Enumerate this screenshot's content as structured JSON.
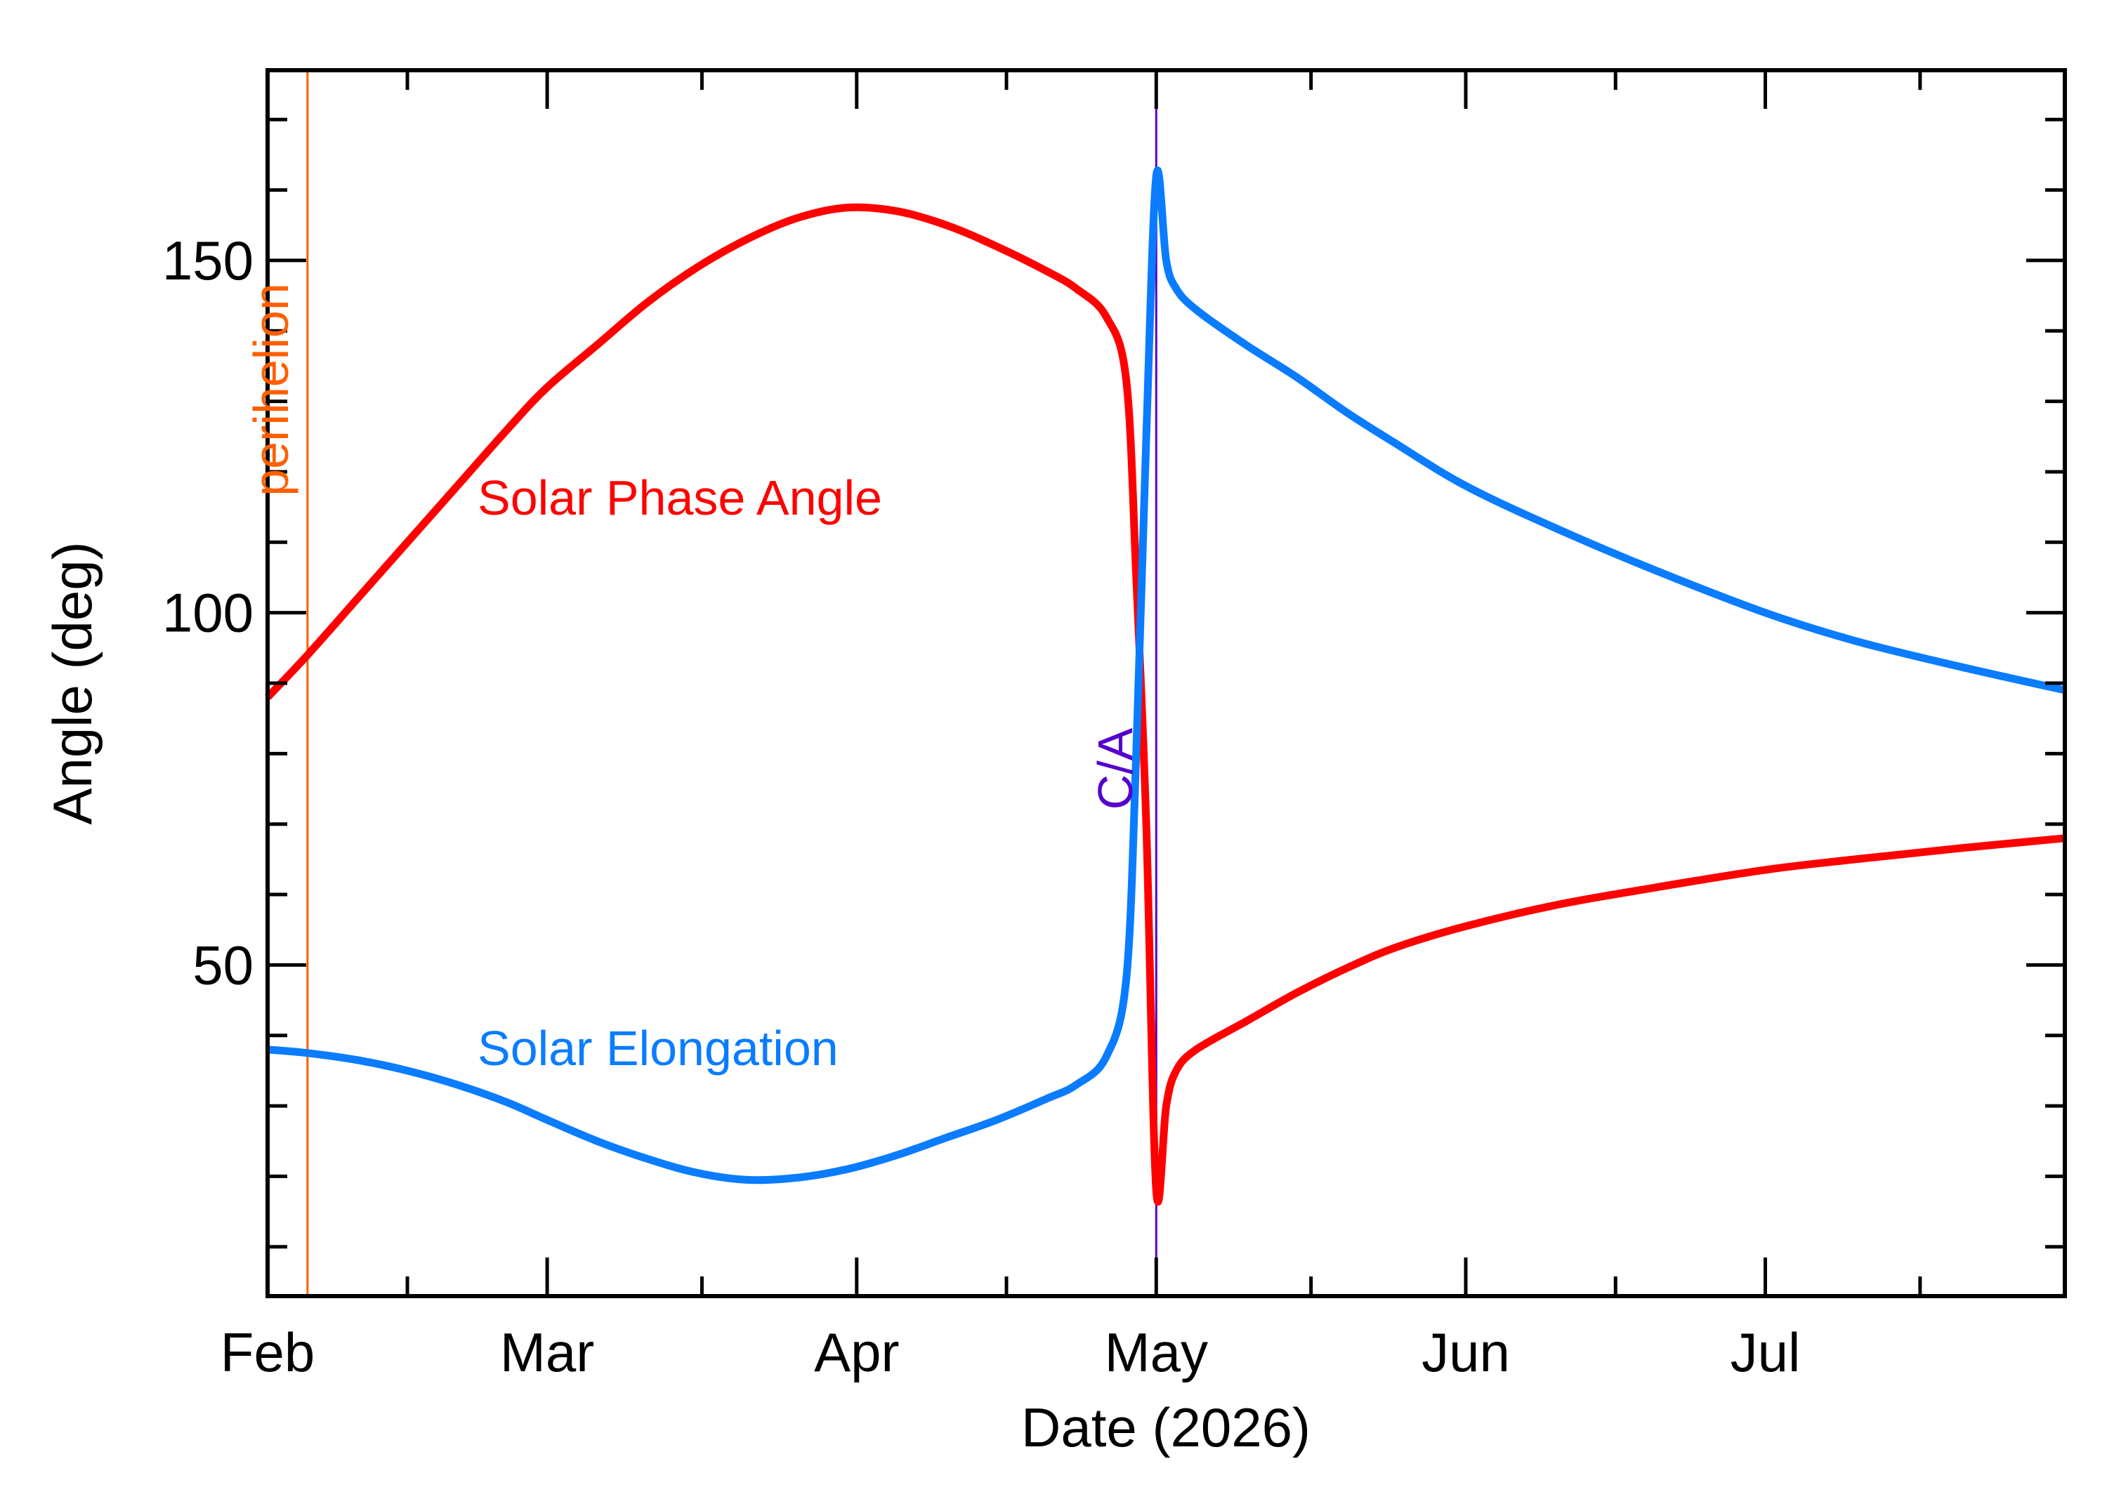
{
  "chart_data": {
    "type": "line",
    "title": "",
    "xlabel": "Date (2026)",
    "ylabel": "Angle (deg)",
    "x_axis": {
      "type": "date",
      "range": [
        "2026-02-01",
        "2026-07-31"
      ],
      "tick_dates": [
        "2026-02-01",
        "2026-03-01",
        "2026-04-01",
        "2026-05-01",
        "2026-06-01",
        "2026-07-01"
      ],
      "tick_labels": [
        "Feb",
        "Mar",
        "Apr",
        "May",
        "Jun",
        "Jul"
      ]
    },
    "y_axis": {
      "range": [
        3,
        177
      ],
      "major_ticks": [
        50,
        100,
        150
      ],
      "major_labels": [
        "50",
        "100",
        "150"
      ],
      "minor_ticks": [
        10,
        20,
        30,
        40,
        60,
        70,
        80,
        90,
        110,
        120,
        130,
        140,
        160,
        170
      ]
    },
    "grid": false,
    "series": [
      {
        "name": "Solar Phase Angle",
        "color": "#ff0000",
        "x": [
          "2026-02-01",
          "2026-02-05",
          "2026-02-10",
          "2026-02-15",
          "2026-02-20",
          "2026-02-25",
          "2026-03-01",
          "2026-03-06",
          "2026-03-11",
          "2026-03-16",
          "2026-03-21",
          "2026-03-26",
          "2026-03-31",
          "2026-04-05",
          "2026-04-10",
          "2026-04-15",
          "2026-04-20",
          "2026-04-23",
          "2026-04-26",
          "2026-04-28",
          "2026-04-29",
          "2026-04-30",
          "2026-05-01",
          "2026-05-02",
          "2026-05-03",
          "2026-05-05",
          "2026-05-10",
          "2026-05-15",
          "2026-05-20",
          "2026-05-25",
          "2026-06-01",
          "2026-06-10",
          "2026-06-20",
          "2026-07-01",
          "2026-07-10",
          "2026-07-20",
          "2026-07-31"
        ],
        "values": [
          88,
          94,
          102,
          110,
          118,
          126,
          132,
          138,
          144,
          149,
          153,
          156,
          157.5,
          157,
          155,
          152,
          148.5,
          146,
          142,
          133,
          105,
          70,
          18,
          30,
          35,
          38,
          42,
          46,
          49.5,
          52.5,
          55.5,
          58.5,
          61,
          63.5,
          65,
          66.5,
          68
        ]
      },
      {
        "name": "Solar Elongation",
        "color": "#0a7cff",
        "x": [
          "2026-02-01",
          "2026-02-05",
          "2026-02-10",
          "2026-02-15",
          "2026-02-20",
          "2026-02-25",
          "2026-03-01",
          "2026-03-06",
          "2026-03-11",
          "2026-03-16",
          "2026-03-21",
          "2026-03-26",
          "2026-03-31",
          "2026-04-05",
          "2026-04-10",
          "2026-04-15",
          "2026-04-20",
          "2026-04-23",
          "2026-04-26",
          "2026-04-28",
          "2026-04-29",
          "2026-04-30",
          "2026-05-01",
          "2026-05-02",
          "2026-05-03",
          "2026-05-05",
          "2026-05-10",
          "2026-05-15",
          "2026-05-20",
          "2026-05-25",
          "2026-06-01",
          "2026-06-10",
          "2026-06-20",
          "2026-07-01",
          "2026-07-10",
          "2026-07-20",
          "2026-07-31"
        ],
        "values": [
          38,
          37.5,
          36.5,
          35,
          33,
          30.5,
          28,
          25,
          22.5,
          20.5,
          19.5,
          19.8,
          21,
          23,
          25.5,
          28,
          31,
          33,
          37,
          48,
          80,
          125,
          162,
          150,
          146,
          143,
          138,
          133.5,
          128.5,
          124,
          118,
          112,
          106,
          100,
          96,
          92.5,
          89
        ]
      }
    ],
    "annotations": [
      {
        "label": "perihelion",
        "date": "2026-02-05",
        "color": "#ff5f00",
        "orientation": "vertical"
      },
      {
        "label": "C/A",
        "date": "2026-05-01",
        "color": "#5500cc",
        "orientation": "vertical"
      }
    ]
  }
}
